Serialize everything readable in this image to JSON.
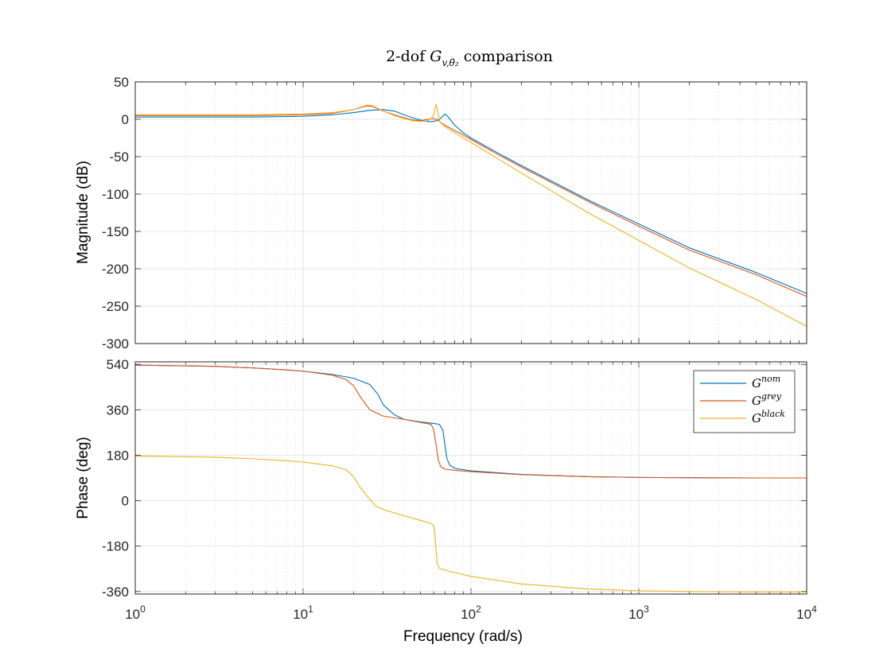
{
  "chart_data": [
    {
      "type": "line",
      "title_main": "2-dof ",
      "title_sym": "G",
      "title_sub": "v,θ̇₂",
      "title_tail": " comparison",
      "xlabel": "",
      "ylabel": "Magnitude (dB)",
      "xscale": "log",
      "xlim": [
        1,
        10000
      ],
      "ylim": [
        -300,
        50
      ],
      "yticks": [
        50,
        0,
        -50,
        -100,
        -150,
        -200,
        -250,
        -300
      ],
      "grid": true,
      "series": [
        {
          "key": "nom",
          "color": "#0072BD",
          "points": [
            [
              1,
              3
            ],
            [
              5,
              3
            ],
            [
              10,
              4
            ],
            [
              15,
              6
            ],
            [
              20,
              9
            ],
            [
              25,
              12
            ],
            [
              30,
              13
            ],
            [
              35,
              11
            ],
            [
              40,
              6
            ],
            [
              45,
              2
            ],
            [
              50,
              -1
            ],
            [
              55,
              -3
            ],
            [
              60,
              -3
            ],
            [
              65,
              0
            ],
            [
              70,
              7
            ],
            [
              72,
              5
            ],
            [
              75,
              0
            ],
            [
              80,
              -8
            ],
            [
              90,
              -18
            ],
            [
              100,
              -25
            ],
            [
              150,
              -47
            ],
            [
              200,
              -62
            ],
            [
              500,
              -108
            ],
            [
              1000,
              -140
            ],
            [
              2000,
              -172
            ],
            [
              5000,
              -205
            ],
            [
              10000,
              -233
            ]
          ]
        },
        {
          "key": "grey",
          "color": "#D95319",
          "points": [
            [
              1,
              5
            ],
            [
              5,
              5
            ],
            [
              10,
              6
            ],
            [
              15,
              8
            ],
            [
              20,
              13
            ],
            [
              24,
              18
            ],
            [
              26,
              17
            ],
            [
              30,
              11
            ],
            [
              35,
              6
            ],
            [
              40,
              2
            ],
            [
              45,
              -1
            ],
            [
              50,
              -2
            ],
            [
              55,
              0
            ],
            [
              60,
              1
            ],
            [
              62,
              0
            ],
            [
              65,
              -3
            ],
            [
              70,
              -8
            ],
            [
              80,
              -15
            ],
            [
              90,
              -21
            ],
            [
              100,
              -27
            ],
            [
              150,
              -49
            ],
            [
              200,
              -64
            ],
            [
              500,
              -110
            ],
            [
              1000,
              -143
            ],
            [
              2000,
              -175
            ],
            [
              5000,
              -208
            ],
            [
              10000,
              -237
            ]
          ]
        },
        {
          "key": "black",
          "color": "#EDB120",
          "points": [
            [
              1,
              6
            ],
            [
              5,
              6
            ],
            [
              10,
              7
            ],
            [
              15,
              9
            ],
            [
              20,
              13
            ],
            [
              24,
              19
            ],
            [
              26,
              18
            ],
            [
              30,
              11
            ],
            [
              35,
              5
            ],
            [
              40,
              1
            ],
            [
              45,
              -2
            ],
            [
              50,
              -3
            ],
            [
              55,
              -2
            ],
            [
              58,
              1
            ],
            [
              60,
              6
            ],
            [
              62,
              20
            ],
            [
              63,
              14
            ],
            [
              65,
              -3
            ],
            [
              70,
              -10
            ],
            [
              80,
              -18
            ],
            [
              100,
              -31
            ],
            [
              150,
              -55
            ],
            [
              200,
              -72
            ],
            [
              500,
              -125
            ],
            [
              1000,
              -162
            ],
            [
              2000,
              -199
            ],
            [
              5000,
              -241
            ],
            [
              10000,
              -277
            ]
          ]
        }
      ]
    },
    {
      "type": "line",
      "xlabel": "Frequency  (rad/s)",
      "ylabel": "Phase (deg)",
      "xscale": "log",
      "xlim": [
        1,
        10000
      ],
      "ylim": [
        -370,
        550
      ],
      "yticks": [
        540,
        360,
        180,
        0,
        -180,
        -360
      ],
      "xticks_base": "10",
      "xticks_exp": [
        "0",
        "1",
        "2",
        "3",
        "4"
      ],
      "grid": true,
      "legend": {
        "position": "top-right",
        "base": "G",
        "entries": [
          {
            "key": "nom",
            "sup": "nom"
          },
          {
            "key": "grey",
            "sup": "grey"
          },
          {
            "key": "black",
            "sup": "black"
          }
        ]
      },
      "series": [
        {
          "key": "nom",
          "color": "#0072BD",
          "points": [
            [
              1,
              537
            ],
            [
              3,
              532
            ],
            [
              5,
              526
            ],
            [
              8,
              518
            ],
            [
              10,
              513
            ],
            [
              15,
              500
            ],
            [
              20,
              485
            ],
            [
              25,
              460
            ],
            [
              28,
              420
            ],
            [
              30,
              380
            ],
            [
              35,
              340
            ],
            [
              40,
              322
            ],
            [
              50,
              312
            ],
            [
              60,
              306
            ],
            [
              65,
              302
            ],
            [
              68,
              280
            ],
            [
              70,
              220
            ],
            [
              72,
              165
            ],
            [
              75,
              140
            ],
            [
              80,
              128
            ],
            [
              100,
              118
            ],
            [
              200,
              104
            ],
            [
              500,
              95
            ],
            [
              1000,
              92
            ],
            [
              2000,
              91
            ],
            [
              5000,
              90
            ],
            [
              10000,
              90
            ]
          ]
        },
        {
          "key": "grey",
          "color": "#D95319",
          "points": [
            [
              1,
              537
            ],
            [
              3,
              532
            ],
            [
              5,
              526
            ],
            [
              8,
              518
            ],
            [
              10,
              513
            ],
            [
              15,
              497
            ],
            [
              18,
              480
            ],
            [
              20,
              455
            ],
            [
              22,
              410
            ],
            [
              25,
              360
            ],
            [
              30,
              335
            ],
            [
              40,
              322
            ],
            [
              50,
              310
            ],
            [
              58,
              302
            ],
            [
              60,
              280
            ],
            [
              62,
              220
            ],
            [
              64,
              160
            ],
            [
              66,
              135
            ],
            [
              70,
              125
            ],
            [
              80,
              120
            ],
            [
              100,
              115
            ],
            [
              200,
              103
            ],
            [
              500,
              95
            ],
            [
              1000,
              92
            ],
            [
              2000,
              91
            ],
            [
              5000,
              90
            ],
            [
              10000,
              90
            ]
          ]
        },
        {
          "key": "black",
          "color": "#EDB120",
          "points": [
            [
              1,
              177
            ],
            [
              3,
              172
            ],
            [
              5,
              166
            ],
            [
              8,
              158
            ],
            [
              10,
              153
            ],
            [
              15,
              138
            ],
            [
              18,
              122
            ],
            [
              20,
              95
            ],
            [
              22,
              50
            ],
            [
              25,
              5
            ],
            [
              27,
              -20
            ],
            [
              30,
              -35
            ],
            [
              40,
              -60
            ],
            [
              50,
              -78
            ],
            [
              58,
              -90
            ],
            [
              60,
              -100
            ],
            [
              61,
              -130
            ],
            [
              62,
              -200
            ],
            [
              63,
              -250
            ],
            [
              65,
              -268
            ],
            [
              70,
              -275
            ],
            [
              100,
              -300
            ],
            [
              200,
              -330
            ],
            [
              500,
              -350
            ],
            [
              1000,
              -357
            ],
            [
              2000,
              -360
            ],
            [
              5000,
              -362
            ],
            [
              10000,
              -362
            ]
          ]
        }
      ]
    }
  ]
}
